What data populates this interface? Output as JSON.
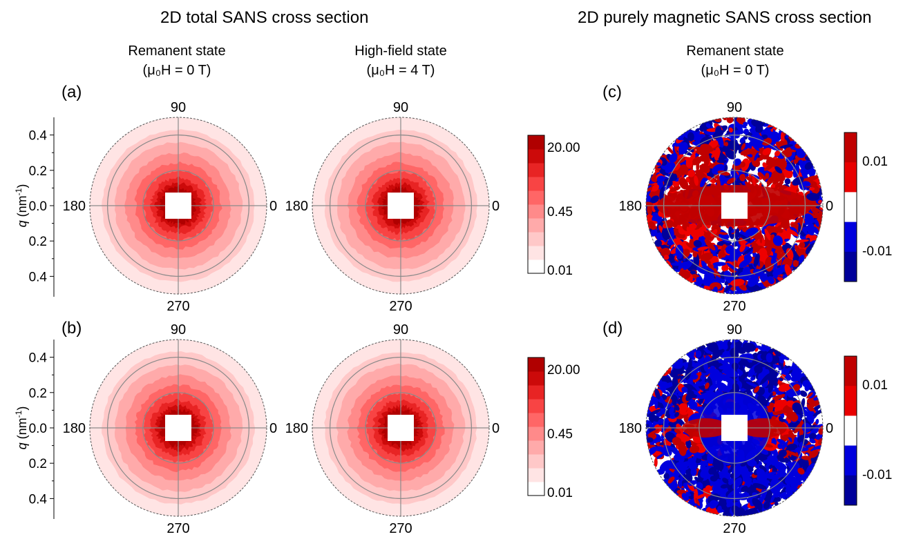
{
  "titles": {
    "total": "2D total SANS cross section",
    "magnetic": "2D purely magnetic SANS cross section"
  },
  "states": {
    "remanent_name": "Remanent state",
    "remanent_field": "(μ₀H = 0 T)",
    "highfield_name": "High-field state",
    "highfield_field": "(μ₀H = 4 T)"
  },
  "panel_labels": [
    "(a)",
    "(b)",
    "(c)",
    "(d)"
  ],
  "angles": {
    "top": "90",
    "left": "180",
    "right": "0",
    "bottom": "270"
  },
  "colors": {
    "total_scale": [
      "#ffffff",
      "#ffe4e4",
      "#ffc8c8",
      "#ffaaaa",
      "#ff8a8a",
      "#ff6666",
      "#f84444",
      "#e82424",
      "#cc0a0a",
      "#b00000"
    ],
    "magnetic_positive": "#c00000",
    "magnetic_positive_light": "#ee0000",
    "magnetic_negative": "#0000dd",
    "magnetic_negative_dark": "#00009a",
    "grid": "#8a8a8a"
  },
  "chart_data": [
    {
      "type": "heatmap",
      "panel": "(a)",
      "title": "Remanent state",
      "ylabel": "q (nm-1)",
      "yticks": [
        "0.4",
        "0.2",
        "0.0",
        "0.2",
        "0.4"
      ],
      "ylim": [
        -0.5,
        0.5
      ],
      "grid_rings_q": [
        0.2,
        0.4
      ],
      "colorbar": {
        "labels": [
          "20.00",
          "0.45",
          "0.01"
        ],
        "scale": "log"
      }
    },
    {
      "type": "heatmap",
      "panel": "(a)",
      "title": "High-field state",
      "grid_rings_q": [
        0.2,
        0.4
      ]
    },
    {
      "type": "heatmap",
      "panel": "(b)",
      "title": "Remanent state",
      "ylabel": "q (nm-1)",
      "yticks": [
        "0.4",
        "0.2",
        "0.0",
        "0.2",
        "0.4"
      ],
      "ylim": [
        -0.5,
        0.5
      ],
      "grid_rings_q": [
        0.2,
        0.4
      ],
      "colorbar": {
        "labels": [
          "20.00",
          "0.45",
          "0.01"
        ],
        "scale": "log"
      }
    },
    {
      "type": "heatmap",
      "panel": "(b)",
      "title": "High-field state",
      "grid_rings_q": [
        0.2,
        0.4
      ]
    },
    {
      "type": "heatmap",
      "panel": "(c)",
      "title": "Remanent state",
      "colorbar": {
        "labels": [
          "0.01",
          "-0.01"
        ]
      }
    },
    {
      "type": "heatmap",
      "panel": "(d)",
      "colorbar": {
        "labels": [
          "0.01",
          "-0.01"
        ]
      }
    }
  ]
}
